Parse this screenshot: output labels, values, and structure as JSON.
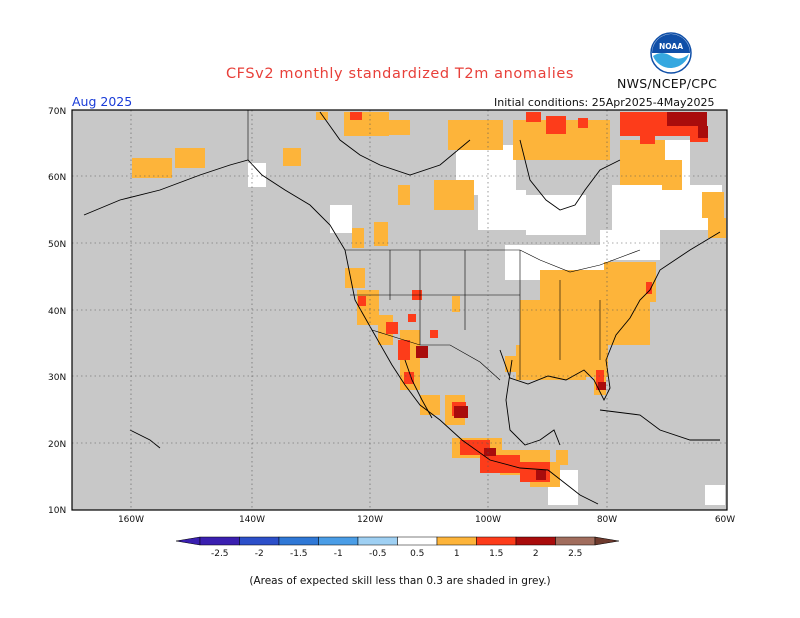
{
  "title": "CFSv2 monthly standardized T2m anomalies",
  "agency": "NWS/NCEP/CPC",
  "logo_text": "NOAA",
  "target_month": "Aug 2025",
  "initial_conditions": "Initial conditions: 25Apr2025-4May2025",
  "lat_labels": [
    "70N",
    "60N",
    "50N",
    "40N",
    "30N",
    "20N",
    "10N"
  ],
  "lon_labels": [
    "160W",
    "140W",
    "120W",
    "100W",
    "80W",
    "60W"
  ],
  "colorbar": {
    "levels": [
      "-2.5",
      "-2",
      "-1.5",
      "-1",
      "-0.5",
      "0.5",
      "1",
      "1.5",
      "2",
      "2.5"
    ],
    "colors": [
      "#3a1fb0",
      "#2c4fc9",
      "#2f78d6",
      "#4a9de6",
      "#9fd0f3",
      "#ffffff",
      "#fdb43a",
      "#fd3c1a",
      "#a90c0c",
      "#a16d5d",
      "#6e3a2d"
    ]
  },
  "map_colors": {
    "skill_mask": "#c8c8c8",
    "neutral": "#ffffff",
    "anomaly_0_5_to_1": "#fdb43a",
    "anomaly_1_to_1_5": "#fd3c1a",
    "anomaly_1_5_to_2": "#a90c0c"
  },
  "footnote": "(Areas of expected skill less than 0.3 are shaded in grey.)"
}
